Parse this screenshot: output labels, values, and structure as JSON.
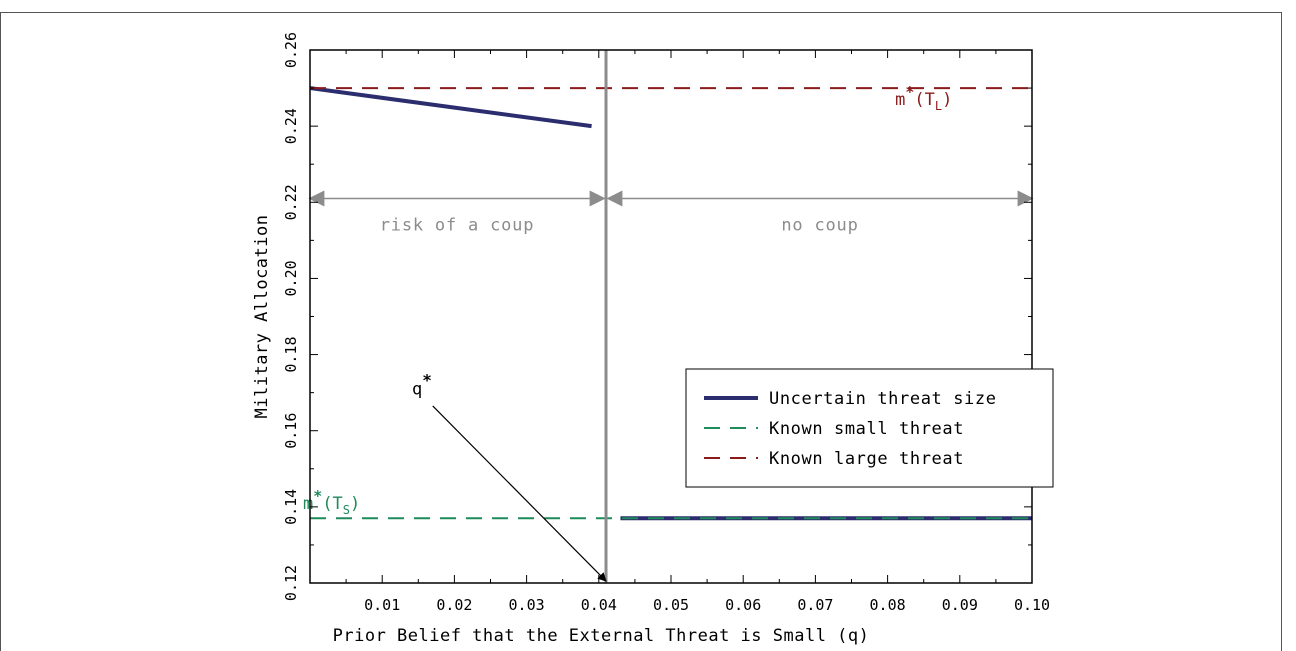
{
  "chart_data": {
    "type": "line",
    "xlabel": "Prior Belief that the External Threat is Small (q)",
    "ylabel": "Military Allocation",
    "xlim": [
      0,
      0.1
    ],
    "ylim": [
      0.12,
      0.26
    ],
    "x_ticks": [
      0.01,
      0.02,
      0.03,
      0.04,
      0.05,
      0.06,
      0.07,
      0.08,
      0.09,
      0.1
    ],
    "x_tick_labels": [
      "0.01",
      "0.02",
      "0.03",
      "0.04",
      "0.05",
      "0.06",
      "0.07",
      "0.08",
      "0.09",
      "0.10"
    ],
    "y_ticks": [
      0.12,
      0.14,
      0.16,
      0.18,
      0.2,
      0.22,
      0.24,
      0.26
    ],
    "y_tick_labels": [
      "0.12",
      "0.14",
      "0.16",
      "0.18",
      "0.20",
      "0.22",
      "0.24",
      "0.26"
    ],
    "series": [
      {
        "name": "Uncertain threat size",
        "color": "#2b2d6e",
        "style": "solid",
        "segments": [
          {
            "x": [
              0.0,
              0.039
            ],
            "y": [
              0.25,
              0.24
            ]
          },
          {
            "x": [
              0.043,
              0.1
            ],
            "y": [
              0.137,
              0.137
            ]
          }
        ]
      },
      {
        "name": "Known small threat",
        "color": "#1f8a5a",
        "style": "dashed",
        "segments": [
          {
            "x": [
              0.0,
              0.1
            ],
            "y": [
              0.137,
              0.137
            ]
          }
        ]
      },
      {
        "name": "Known large threat",
        "color": "#8b1a1a",
        "style": "dashed",
        "segments": [
          {
            "x": [
              0.0,
              0.1
            ],
            "y": [
              0.25,
              0.25
            ]
          }
        ]
      }
    ],
    "threshold": {
      "x": 0.041,
      "color": "#8c8c8c"
    },
    "regions": [
      {
        "label": "risk of a coup",
        "x_from": 0.0,
        "x_to": 0.041,
        "y": 0.221
      },
      {
        "label": "no coup",
        "x_from": 0.041,
        "x_to": 0.1,
        "y": 0.221
      }
    ],
    "annotations": {
      "qstar": {
        "base": "q",
        "sup": "*",
        "x": 0.0155,
        "y": 0.1695,
        "arrow_from": [
          0.017,
          0.1665
        ],
        "arrow_to": [
          0.041,
          0.1205
        ]
      },
      "m_large": {
        "base": "m",
        "sup": "*",
        "paren_open": "(T",
        "sub": "L",
        "paren_close": ")",
        "x": 0.085,
        "y": 0.2455,
        "color": "#8b1a1a"
      },
      "m_small": {
        "base": "m",
        "sup": "*",
        "paren_open": "(T",
        "sub": "S",
        "paren_close": ")",
        "x": 0.003,
        "y": 0.1395,
        "color": "#1f8a5a"
      }
    },
    "legend": {
      "placement": "lower-right",
      "entries": [
        "Uncertain threat size",
        "Known small threat",
        "Known large threat"
      ]
    },
    "grid": false
  }
}
